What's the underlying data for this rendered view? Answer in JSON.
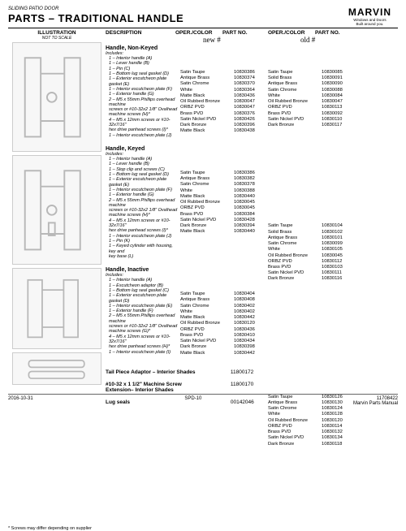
{
  "header": {
    "top": "SLIDING PATIO DOOR",
    "main": "PARTS – TRADITIONAL HANDLE"
  },
  "logo": {
    "main": "MARVIN",
    "sub": "Windows and Doors",
    "tag": "Built around you."
  },
  "columns": {
    "illustration": "ILLUSTRATION",
    "ill_sub": "NOT TO SCALE",
    "description": "DESCRIPTION",
    "oper_color": "OPER./COLOR",
    "part_no": "PART NO."
  },
  "notes": {
    "new": "new #",
    "old": "old #"
  },
  "sections": [
    {
      "title": "Handle, Non-Keyed",
      "includes_label": "Includes:",
      "includes": [
        "1 – Interior handle (A)",
        "1 – Lever handle (B)",
        "1 – Pin (C)",
        "1 – Bottom lug seal gasket (D)",
        "1 – Exterior escutcheon plate gasket (E)",
        "1 – Interior escutcheon plate (F)",
        "1 – Exterior handle (G)",
        "2 – M5 x 55mm Phillips overhead machine",
        "      screws or #10-32x2 1/8\" Ovalhead",
        "      machine screws (H)*",
        "4 – M5 x 12mm screws or #10-32x7/16\"",
        "      hex drive panhead screws (I)*",
        "1 – Interior escutcheon plate (J)"
      ],
      "new_rows": [
        {
          "oc": "Satin Taupe",
          "pn": "10830386"
        },
        {
          "oc": "Antique Brass",
          "pn": "10830374"
        },
        {
          "oc": "Satin Chrome",
          "pn": "10830370"
        },
        {
          "oc": "White",
          "pn": "10830364"
        },
        {
          "oc": "Matte Black",
          "pn": "10830436"
        },
        {
          "oc": "Oil Rubbed Bronze",
          "pn": "10830047"
        },
        {
          "oc": "ORBZ PVD",
          "pn": "10830047"
        },
        {
          "oc": "Brass PVD",
          "pn": "10830376"
        },
        {
          "oc": "Satin Nickel PVD",
          "pn": "10830426"
        },
        {
          "oc": "Dark Bronze",
          "pn": "10830396"
        },
        {
          "oc": "Matte Black",
          "pn": "10830438"
        }
      ],
      "old_rows": [
        {
          "oc": "Satin Taupe",
          "pn": "10830085"
        },
        {
          "oc": "Solid Brass",
          "pn": "10830091"
        },
        {
          "oc": "Antique Brass",
          "pn": "10830090"
        },
        {
          "oc": "Satin Chrome",
          "pn": "10830088"
        },
        {
          "oc": "White",
          "pn": "10830084"
        },
        {
          "oc": "Oil Rubbed Bronze",
          "pn": "10830047"
        },
        {
          "oc": "ORBZ PVD",
          "pn": "10830113"
        },
        {
          "oc": "Brass PVD",
          "pn": "10830092"
        },
        {
          "oc": "Satin Nickel PVD",
          "pn": "10830110"
        },
        {
          "oc": "Dark Bronze",
          "pn": "10830117"
        }
      ]
    },
    {
      "title": "Handle, Keyed",
      "includes_label": "Includes:",
      "includes": [
        "1 – Interior handle (A)",
        "1 – Lever handle (B)",
        "1 – Stop clip and screws (C)",
        "1 – Bottom lug seal gasket (D)",
        "1 – Exterior escutcheon plate gasket (E)",
        "1 – Interior escutcheon plate (F)",
        "1 – Exterior handle (G)",
        "2 – M5 x 55mm Phillips overhead machine",
        "      screws or #10-32x2 1/8\" Ovalhead",
        "      machine screws (H)*",
        "4 – M5 x 12mm screws or #10-32x7/16\"",
        "      hex drive panhead screws (I)*",
        "1 – Interior escutcheon plate (J)",
        "1 – Pin (K)",
        "1 – Keyed cylinder with housing, key and",
        "      key base (L)"
      ],
      "new_rows": [
        {
          "oc": "Satin Taupe",
          "pn": "10830386"
        },
        {
          "oc": "Antique Brass",
          "pn": "10830382"
        },
        {
          "oc": "Satin Chrome",
          "pn": "10830378"
        },
        {
          "oc": "White",
          "pn": "10830388"
        },
        {
          "oc": "Matte Black",
          "pn": "10830440"
        },
        {
          "oc": "Oil Rubbed Bronze",
          "pn": "10830045"
        },
        {
          "oc": "ORBZ PVD",
          "pn": "10830045"
        },
        {
          "oc": "Brass PVD",
          "pn": "10830384"
        },
        {
          "oc": "Satin Nickel PVD",
          "pn": "10830428"
        },
        {
          "oc": "Dark Bronze",
          "pn": "10830394"
        },
        {
          "oc": "Matte Black",
          "pn": "10830440"
        }
      ],
      "old_rows": [
        {
          "oc": "Satin Taupe",
          "pn": "10830104"
        },
        {
          "oc": "Solid Brass",
          "pn": "10830102"
        },
        {
          "oc": "Antique Brass",
          "pn": "10830101"
        },
        {
          "oc": "Satin Chrome",
          "pn": "10830099"
        },
        {
          "oc": "White",
          "pn": "10830105"
        },
        {
          "oc": "Oil Rubbed Bronze",
          "pn": "10830045"
        },
        {
          "oc": "ORBZ PVD",
          "pn": "10830112"
        },
        {
          "oc": "Brass PVD",
          "pn": "10830103"
        },
        {
          "oc": "Satin Nickel PVD",
          "pn": "10830111"
        },
        {
          "oc": "Dark Bronze",
          "pn": "10830116"
        }
      ]
    },
    {
      "title": "Handle, Inactive",
      "includes_label": "Includes:",
      "includes": [
        "1 – Interior handle (A)",
        "1 – Escutcheon adaptor (B)",
        "1 – Bottom lug seal gasket (C)",
        "1 – Exterior escutcheon plate gasket (D)",
        "1 – Interior escutcheon plate (E)",
        "1 – Exterior handle (F)",
        "2 – M5 x 55mm Phillips overhead machine",
        "      screws or #10-32x2 1/8\" Ovalhead",
        "      machine screws (G)*",
        "4 – M5 x 12mm screws or #10-32x7/16\"",
        "      hex drive panhead screws (H)*",
        "1 – Interior escutcheon plate (I)"
      ],
      "new_rows": [
        {
          "oc": "Satin Taupe",
          "pn": "10830404"
        },
        {
          "oc": "Antique Brass",
          "pn": "10830408"
        },
        {
          "oc": "Satin Chrome",
          "pn": "10830402"
        },
        {
          "oc": "White",
          "pn": "10830402"
        },
        {
          "oc": "Matte Black",
          "pn": "10830442"
        },
        {
          "oc": "Oil Rubbed Bronze",
          "pn": "10830120"
        },
        {
          "oc": "ORBZ PVD",
          "pn": "10830436"
        },
        {
          "oc": "Brass PVD",
          "pn": "10830410"
        },
        {
          "oc": "Satin Nickel PVD",
          "pn": "10830434"
        },
        {
          "oc": "Dark Bronze",
          "pn": "10830398"
        },
        {
          "oc": "Matte Black",
          "pn": "10830442"
        }
      ],
      "old_rows": [
        {
          "oc": "Satin Taupe",
          "pn": "10830126"
        },
        {
          "oc": "Antique Brass",
          "pn": "10830130"
        },
        {
          "oc": "Satin Chrome",
          "pn": "10830124"
        },
        {
          "oc": "White",
          "pn": "10830128"
        },
        {
          "oc": "Oil Rubbed Bronze",
          "pn": "10830120"
        },
        {
          "oc": "ORBZ PVD",
          "pn": "10830114"
        },
        {
          "oc": "Brass PVD",
          "pn": "10830132"
        },
        {
          "oc": "Satin Nickel PVD",
          "pn": "10830134"
        },
        {
          "oc": "Dark Bronze",
          "pn": "10830118"
        }
      ]
    }
  ],
  "misc": [
    {
      "desc": "Tail Piece Adaptor – Interior Shades",
      "pn": "11800172"
    },
    {
      "desc": "#10-32 x 1 1/2\" Machine Screw\nExtension– Interior Shades",
      "pn": "11800170"
    },
    {
      "desc": "Lug seals",
      "pn": "00142046"
    }
  ],
  "footnote": "*   Screws may differ depending on supplier",
  "footer": {
    "left": "2016-10-31",
    "center": "SPD-10",
    "right_top": "11708422",
    "right_bot": "Marvin Parts Manual"
  }
}
